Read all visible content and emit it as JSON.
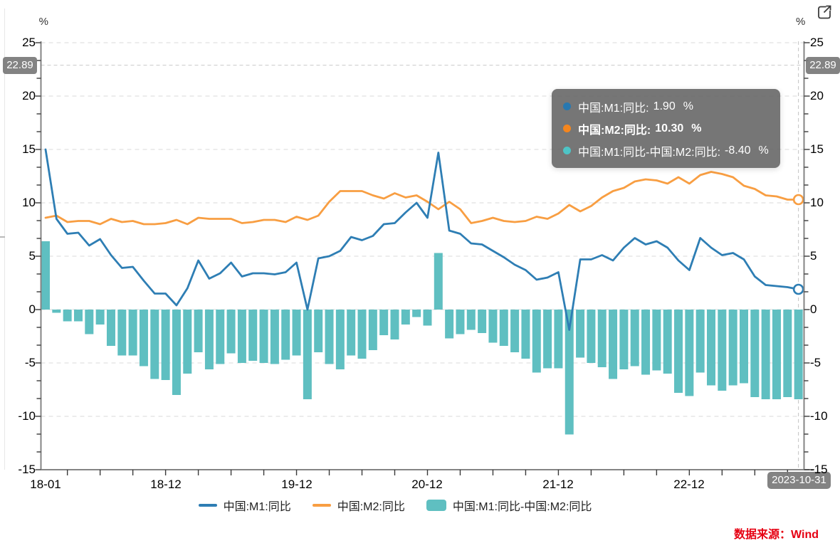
{
  "page": {
    "unit_left": "%",
    "unit_right": "%",
    "source": "数据来源：Wind"
  },
  "axis": {
    "y_ticks": [
      25,
      20,
      15,
      10,
      5,
      0,
      -5,
      -10,
      -15
    ],
    "y_crosshair_badge": "22.89",
    "x_tick_labels": [
      "18-01",
      "18-12",
      "19-12",
      "20-12",
      "21-12",
      "22-12"
    ],
    "x_tick_month_indices": [
      0,
      11,
      23,
      35,
      47,
      59
    ],
    "x_crosshair_badge": "2023-10-31"
  },
  "tooltip": {
    "rows": [
      {
        "label": "中国:M1:同比:",
        "value": "1.90",
        "unit": "%",
        "dot_color": "#2878b0",
        "bold": false
      },
      {
        "label": "中国:M2:同比:",
        "value": "10.30",
        "unit": "%",
        "dot_color": "#f5861d",
        "bold": true
      },
      {
        "label": "中国:M1:同比-中国:M2:同比:",
        "value": "-8.40",
        "unit": "%",
        "dot_color": "#4ec4c6",
        "bold": false
      }
    ]
  },
  "legend": {
    "items": [
      {
        "label": "中国:M1:同比",
        "color": "#2e7eb4",
        "swatch": "line"
      },
      {
        "label": "中国:M2:同比",
        "color": "#f89e42",
        "swatch": "line"
      },
      {
        "label": "中国:M1:同比-中国:M2:同比",
        "color": "#5fbfc1",
        "swatch": "rect"
      }
    ]
  },
  "icons": {
    "expand": "open-in-new-window"
  },
  "chart_data": {
    "type": "mixed",
    "x": [
      "2018-01",
      "2018-02",
      "2018-03",
      "2018-04",
      "2018-05",
      "2018-06",
      "2018-07",
      "2018-08",
      "2018-09",
      "2018-10",
      "2018-11",
      "2018-12",
      "2019-01",
      "2019-02",
      "2019-03",
      "2019-04",
      "2019-05",
      "2019-06",
      "2019-07",
      "2019-08",
      "2019-09",
      "2019-10",
      "2019-11",
      "2019-12",
      "2020-01",
      "2020-02",
      "2020-03",
      "2020-04",
      "2020-05",
      "2020-06",
      "2020-07",
      "2020-08",
      "2020-09",
      "2020-10",
      "2020-11",
      "2020-12",
      "2021-01",
      "2021-02",
      "2021-03",
      "2021-04",
      "2021-05",
      "2021-06",
      "2021-07",
      "2021-08",
      "2021-09",
      "2021-10",
      "2021-11",
      "2021-12",
      "2022-01",
      "2022-02",
      "2022-03",
      "2022-04",
      "2022-05",
      "2022-06",
      "2022-07",
      "2022-08",
      "2022-09",
      "2022-10",
      "2022-11",
      "2022-12",
      "2023-01",
      "2023-02",
      "2023-03",
      "2023-04",
      "2023-05",
      "2023-06",
      "2023-07",
      "2023-08",
      "2023-09",
      "2023-10"
    ],
    "series": [
      {
        "name": "中国:M1:同比",
        "type": "line",
        "color": "#2e7eb4",
        "values": [
          15.0,
          8.5,
          7.1,
          7.2,
          6.0,
          6.6,
          5.1,
          3.9,
          4.0,
          2.7,
          1.5,
          1.5,
          0.4,
          2.0,
          4.6,
          2.9,
          3.4,
          4.4,
          3.1,
          3.4,
          3.4,
          3.3,
          3.5,
          4.4,
          0.0,
          4.8,
          5.0,
          5.5,
          6.8,
          6.5,
          6.9,
          8.0,
          8.1,
          9.1,
          10.0,
          8.6,
          14.7,
          7.4,
          7.1,
          6.2,
          6.1,
          5.5,
          4.9,
          4.2,
          3.7,
          2.8,
          3.0,
          3.5,
          -1.9,
          4.7,
          4.7,
          5.1,
          4.6,
          5.8,
          6.7,
          6.1,
          6.4,
          5.8,
          4.6,
          3.7,
          6.7,
          5.8,
          5.1,
          5.3,
          4.7,
          3.1,
          2.3,
          2.2,
          2.1,
          1.9
        ]
      },
      {
        "name": "中国:M2:同比",
        "type": "line",
        "color": "#f89e42",
        "values": [
          8.6,
          8.8,
          8.2,
          8.3,
          8.3,
          8.0,
          8.5,
          8.2,
          8.3,
          8.0,
          8.0,
          8.1,
          8.4,
          8.0,
          8.6,
          8.5,
          8.5,
          8.5,
          8.1,
          8.2,
          8.4,
          8.4,
          8.2,
          8.7,
          8.4,
          8.8,
          10.1,
          11.1,
          11.1,
          11.1,
          10.7,
          10.4,
          10.9,
          10.5,
          10.7,
          10.1,
          9.4,
          10.1,
          9.4,
          8.1,
          8.3,
          8.6,
          8.3,
          8.2,
          8.3,
          8.7,
          8.5,
          9.0,
          9.8,
          9.2,
          9.7,
          10.5,
          11.1,
          11.4,
          12.0,
          12.2,
          12.1,
          11.8,
          12.4,
          11.8,
          12.6,
          12.9,
          12.7,
          12.4,
          11.6,
          11.3,
          10.7,
          10.6,
          10.3,
          10.3
        ]
      },
      {
        "name": "中国:M1:同比-中国:M2:同比",
        "type": "bar",
        "color": "#5fbfc1",
        "values": [
          6.4,
          -0.3,
          -1.1,
          -1.1,
          -2.3,
          -1.4,
          -3.4,
          -4.3,
          -4.3,
          -5.3,
          -6.5,
          -6.6,
          -8.0,
          -6.0,
          -4.0,
          -5.6,
          -5.1,
          -4.1,
          -5.0,
          -4.8,
          -5.0,
          -5.1,
          -4.7,
          -4.3,
          -8.4,
          -4.0,
          -5.1,
          -5.6,
          -4.3,
          -4.6,
          -3.8,
          -2.4,
          -2.8,
          -1.4,
          -0.7,
          -1.5,
          5.3,
          -2.7,
          -2.3,
          -1.9,
          -2.2,
          -3.1,
          -3.4,
          -4.0,
          -4.6,
          -5.9,
          -5.5,
          -5.5,
          -11.7,
          -4.5,
          -5.0,
          -5.4,
          -6.5,
          -5.6,
          -5.3,
          -6.1,
          -5.7,
          -6.0,
          -7.8,
          -8.1,
          -5.9,
          -7.1,
          -7.6,
          -7.1,
          -6.9,
          -8.2,
          -8.4,
          -8.4,
          -8.2,
          -8.4
        ]
      }
    ],
    "ylabel": "%",
    "ylim": [
      -15,
      25
    ],
    "grid": true,
    "legend_position": "bottom",
    "crosshair": {
      "x_date": "2023-10-31",
      "y_value": 22.89
    },
    "latest_values": {
      "m1_yoy_pct": 1.9,
      "m2_yoy_pct": 10.3,
      "m1_minus_m2_pct": -8.4
    }
  }
}
